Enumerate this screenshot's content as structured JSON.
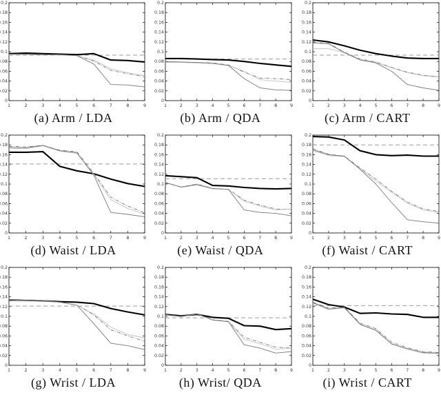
{
  "page": {
    "background": "#ffffff",
    "description": "3x3 grid of error-rate line plots by sensor position (Arm, Waist, Wrist) and classifier (LDA, QDA, CART)"
  },
  "axes": {
    "xlim": [
      1,
      9
    ],
    "ylim": [
      0,
      0.2
    ],
    "x_ticks": [
      "1",
      "2",
      "3",
      "4",
      "5",
      "6",
      "7",
      "8",
      "9"
    ],
    "y_ticks": [
      "0",
      "0.02",
      "0.04",
      "0.06",
      "0.08",
      "0.1",
      "0.12",
      "0.14",
      "0.16",
      "0.18",
      "0.2"
    ],
    "grid": false,
    "box": true
  },
  "style": {
    "thick_color": "#000000",
    "baseline_color": "#999999",
    "dashdot_color": "#666666",
    "light_color": "#bbbbbb",
    "dark_color": "#777777",
    "frame_color": "#000000",
    "tick_label_color": "#333333"
  },
  "chart_data": [
    {
      "type": "line",
      "caption": "(a) Arm / LDA",
      "x": [
        1,
        2,
        3,
        4,
        5,
        6,
        7,
        8,
        9
      ],
      "xlim": [
        1,
        9
      ],
      "ylim": [
        0,
        0.2
      ],
      "baseline": 0.093,
      "series": [
        {
          "name": "thick-black",
          "style": "thick",
          "values": [
            0.096,
            0.097,
            0.096,
            0.095,
            0.094,
            0.096,
            0.083,
            0.082,
            0.079
          ]
        },
        {
          "name": "dashdot-gray",
          "style": "dashdot",
          "values": [
            0.095,
            0.095,
            0.094,
            0.094,
            0.092,
            0.081,
            0.062,
            0.055,
            0.049
          ]
        },
        {
          "name": "light-gray",
          "style": "light",
          "values": [
            0.094,
            0.094,
            0.094,
            0.093,
            0.092,
            0.083,
            0.065,
            0.057,
            0.051
          ]
        },
        {
          "name": "dark-gray",
          "style": "dark",
          "values": [
            0.095,
            0.095,
            0.094,
            0.094,
            0.092,
            0.075,
            0.033,
            0.032,
            0.028
          ]
        }
      ]
    },
    {
      "type": "line",
      "caption": "(b) Arm / QDA",
      "x": [
        1,
        2,
        3,
        4,
        5,
        6,
        7,
        8,
        9
      ],
      "xlim": [
        1,
        9
      ],
      "ylim": [
        0,
        0.2
      ],
      "baseline": 0.085,
      "series": [
        {
          "name": "thick-black",
          "style": "thick",
          "values": [
            0.086,
            0.086,
            0.085,
            0.084,
            0.083,
            0.08,
            0.076,
            0.073,
            0.07
          ]
        },
        {
          "name": "dashdot-gray",
          "style": "dashdot",
          "values": [
            0.079,
            0.079,
            0.078,
            0.077,
            0.073,
            0.058,
            0.046,
            0.045,
            0.043
          ]
        },
        {
          "name": "light-gray",
          "style": "light",
          "values": [
            0.078,
            0.078,
            0.077,
            0.076,
            0.072,
            0.06,
            0.043,
            0.04,
            0.037
          ]
        },
        {
          "name": "dark-gray",
          "style": "dark",
          "values": [
            0.08,
            0.079,
            0.078,
            0.076,
            0.072,
            0.045,
            0.026,
            0.022,
            0.021
          ]
        }
      ]
    },
    {
      "type": "line",
      "caption": "(c) Arm / CART",
      "x": [
        1,
        2,
        3,
        4,
        5,
        6,
        7,
        8,
        9
      ],
      "xlim": [
        1,
        9
      ],
      "ylim": [
        0,
        0.2
      ],
      "baseline": 0.093,
      "series": [
        {
          "name": "thick-black",
          "style": "thick",
          "values": [
            0.124,
            0.12,
            0.112,
            0.103,
            0.096,
            0.091,
            0.087,
            0.086,
            0.086
          ]
        },
        {
          "name": "dashdot-gray",
          "style": "dashdot",
          "values": [
            0.119,
            0.117,
            0.099,
            0.085,
            0.079,
            0.068,
            0.058,
            0.052,
            0.049
          ]
        },
        {
          "name": "light-gray",
          "style": "light",
          "values": [
            0.106,
            0.106,
            0.098,
            0.084,
            0.078,
            0.067,
            0.057,
            0.051,
            0.048
          ]
        },
        {
          "name": "dark-gray",
          "style": "dark",
          "values": [
            0.118,
            0.116,
            0.098,
            0.083,
            0.077,
            0.06,
            0.033,
            0.026,
            0.021
          ]
        }
      ]
    },
    {
      "type": "line",
      "caption": "(d) Waist / LDA",
      "x": [
        1,
        2,
        3,
        4,
        5,
        6,
        7,
        8,
        9
      ],
      "xlim": [
        1,
        9
      ],
      "ylim": [
        0,
        0.2
      ],
      "baseline": 0.141,
      "series": [
        {
          "name": "thick-black",
          "style": "thick",
          "values": [
            0.165,
            0.165,
            0.166,
            0.136,
            0.127,
            0.121,
            0.11,
            0.101,
            0.095
          ]
        },
        {
          "name": "dashdot-gray",
          "style": "dashdot",
          "values": [
            0.177,
            0.176,
            0.179,
            0.169,
            0.166,
            0.122,
            0.073,
            0.055,
            0.041
          ]
        },
        {
          "name": "light-gray",
          "style": "light",
          "values": [
            0.173,
            0.172,
            0.178,
            0.167,
            0.163,
            0.12,
            0.068,
            0.05,
            0.038
          ]
        },
        {
          "name": "dark-gray",
          "style": "dark",
          "values": [
            0.175,
            0.174,
            0.179,
            0.168,
            0.164,
            0.118,
            0.042,
            0.038,
            0.033
          ]
        }
      ]
    },
    {
      "type": "line",
      "caption": "(e) Waist / QDA",
      "x": [
        1,
        2,
        3,
        4,
        5,
        6,
        7,
        8,
        9
      ],
      "xlim": [
        1,
        9
      ],
      "ylim": [
        0,
        0.2
      ],
      "baseline": 0.111,
      "series": [
        {
          "name": "thick-black",
          "style": "thick",
          "values": [
            0.117,
            0.115,
            0.113,
            0.097,
            0.096,
            0.093,
            0.091,
            0.09,
            0.091
          ]
        },
        {
          "name": "dashdot-gray",
          "style": "dashdot",
          "values": [
            0.102,
            0.094,
            0.1,
            0.091,
            0.089,
            0.067,
            0.057,
            0.049,
            0.048
          ]
        },
        {
          "name": "light-gray",
          "style": "light",
          "values": [
            0.104,
            0.093,
            0.098,
            0.09,
            0.089,
            0.065,
            0.055,
            0.047,
            0.049
          ]
        },
        {
          "name": "dark-gray",
          "style": "dark",
          "values": [
            0.103,
            0.094,
            0.099,
            0.091,
            0.089,
            0.047,
            0.042,
            0.04,
            0.035
          ]
        }
      ]
    },
    {
      "type": "line",
      "caption": "(f) Waist / CART",
      "x": [
        1,
        2,
        3,
        4,
        5,
        6,
        7,
        8,
        9
      ],
      "xlim": [
        1,
        9
      ],
      "ylim": [
        0,
        0.2
      ],
      "baseline": 0.18,
      "series": [
        {
          "name": "thick-black",
          "style": "thick",
          "values": [
            0.197,
            0.196,
            0.19,
            0.168,
            0.16,
            0.158,
            0.159,
            0.157,
            0.157
          ]
        },
        {
          "name": "dashdot-gray",
          "style": "dashdot",
          "values": [
            0.172,
            0.161,
            0.157,
            0.133,
            0.11,
            0.085,
            0.063,
            0.049,
            0.044
          ]
        },
        {
          "name": "light-gray",
          "style": "light",
          "values": [
            0.168,
            0.158,
            0.156,
            0.131,
            0.106,
            0.083,
            0.061,
            0.047,
            0.042
          ]
        },
        {
          "name": "dark-gray",
          "style": "dark",
          "values": [
            0.17,
            0.16,
            0.157,
            0.13,
            0.1,
            0.062,
            0.027,
            0.023,
            0.02
          ]
        }
      ]
    },
    {
      "type": "line",
      "caption": "(g) Wrist / LDA",
      "x": [
        1,
        2,
        3,
        4,
        5,
        6,
        7,
        8,
        9
      ],
      "xlim": [
        1,
        9
      ],
      "ylim": [
        0,
        0.2
      ],
      "baseline": 0.121,
      "series": [
        {
          "name": "thick-black",
          "style": "thick",
          "values": [
            0.133,
            0.133,
            0.132,
            0.13,
            0.129,
            0.126,
            0.116,
            0.109,
            0.103
          ]
        },
        {
          "name": "dashdot-gray",
          "style": "dashdot",
          "values": [
            0.132,
            0.134,
            0.132,
            0.129,
            0.123,
            0.103,
            0.073,
            0.06,
            0.049
          ]
        },
        {
          "name": "light-gray",
          "style": "light",
          "values": [
            0.132,
            0.134,
            0.133,
            0.129,
            0.123,
            0.105,
            0.078,
            0.063,
            0.056
          ]
        },
        {
          "name": "dark-gray",
          "style": "dark",
          "values": [
            0.132,
            0.133,
            0.132,
            0.129,
            0.123,
            0.085,
            0.045,
            0.04,
            0.032
          ]
        }
      ]
    },
    {
      "type": "line",
      "caption": "(h) Wrist/ QDA",
      "x": [
        1,
        2,
        3,
        4,
        5,
        6,
        7,
        8,
        9
      ],
      "xlim": [
        1,
        9
      ],
      "ylim": [
        0,
        0.2
      ],
      "baseline": 0.097,
      "series": [
        {
          "name": "thick-black",
          "style": "thick",
          "values": [
            0.104,
            0.101,
            0.104,
            0.098,
            0.096,
            0.081,
            0.08,
            0.073,
            0.075
          ]
        },
        {
          "name": "dashdot-gray",
          "style": "dashdot",
          "values": [
            0.104,
            0.1,
            0.106,
            0.093,
            0.09,
            0.057,
            0.047,
            0.037,
            0.035
          ]
        },
        {
          "name": "light-gray",
          "style": "light",
          "values": [
            0.103,
            0.099,
            0.105,
            0.092,
            0.089,
            0.053,
            0.044,
            0.033,
            0.035
          ]
        },
        {
          "name": "dark-gray",
          "style": "dark",
          "values": [
            0.103,
            0.1,
            0.105,
            0.093,
            0.089,
            0.042,
            0.035,
            0.025,
            0.028
          ]
        }
      ]
    },
    {
      "type": "line",
      "caption": "(i) Wrist / CART",
      "x": [
        1,
        2,
        3,
        4,
        5,
        6,
        7,
        8,
        9
      ],
      "xlim": [
        1,
        9
      ],
      "ylim": [
        0,
        0.2
      ],
      "baseline": 0.122,
      "series": [
        {
          "name": "thick-black",
          "style": "thick",
          "values": [
            0.135,
            0.124,
            0.119,
            0.106,
            0.107,
            0.105,
            0.104,
            0.098,
            0.098
          ]
        },
        {
          "name": "dashdot-gray",
          "style": "dashdot",
          "values": [
            0.129,
            0.117,
            0.119,
            0.086,
            0.075,
            0.047,
            0.036,
            0.028,
            0.026
          ]
        },
        {
          "name": "light-gray",
          "style": "light",
          "values": [
            0.127,
            0.114,
            0.117,
            0.083,
            0.071,
            0.043,
            0.033,
            0.025,
            0.024
          ]
        },
        {
          "name": "dark-gray",
          "style": "dark",
          "values": [
            0.128,
            0.115,
            0.118,
            0.084,
            0.072,
            0.044,
            0.034,
            0.026,
            0.025
          ]
        }
      ]
    }
  ]
}
